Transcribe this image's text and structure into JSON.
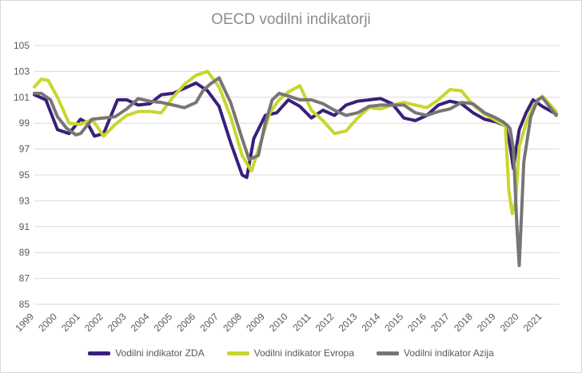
{
  "chart_data": {
    "type": "line",
    "title": "OECD vodilni indikatorji",
    "xlabel": "",
    "ylabel": "",
    "ylim": [
      85,
      105
    ],
    "yticks": [
      "85",
      "87",
      "89",
      "91",
      "93",
      "95",
      "97",
      "99",
      "101",
      "103",
      "105"
    ],
    "xticks": [
      "1999",
      "2000",
      "2001",
      "2002",
      "2003",
      "2004",
      "2005",
      "2006",
      "2007",
      "2008",
      "2009",
      "2010",
      "2011",
      "2012",
      "2013",
      "2014",
      "2015",
      "2016",
      "2017",
      "2018",
      "2019",
      "2020",
      "2021"
    ],
    "grid": true,
    "legend_position": "bottom",
    "series": [
      {
        "name": "Vodilni indikator ZDA",
        "color": "#3a1f7a",
        "x": [
          1999.0,
          1999.5,
          2000.0,
          2000.5,
          2001.0,
          2001.3,
          2001.6,
          2002.0,
          2002.3,
          2002.6,
          2003.0,
          2003.5,
          2004.0,
          2004.5,
          2005.0,
          2005.5,
          2006.0,
          2006.5,
          2007.0,
          2007.5,
          2008.0,
          2008.2,
          2008.5,
          2009.0,
          2009.5,
          2010.0,
          2010.5,
          2011.0,
          2011.5,
          2012.0,
          2012.5,
          2013.0,
          2013.5,
          2014.0,
          2014.5,
          2015.0,
          2015.5,
          2016.0,
          2016.5,
          2017.0,
          2017.5,
          2018.0,
          2018.5,
          2019.0,
          2019.4,
          2019.6,
          2019.75,
          2019.85,
          2020.0,
          2020.3,
          2020.6,
          2021.0,
          2021.6
        ],
        "values": [
          101.2,
          100.8,
          98.5,
          98.2,
          99.3,
          99.0,
          98.0,
          98.2,
          99.5,
          100.8,
          100.8,
          100.4,
          100.5,
          101.2,
          101.3,
          101.7,
          102.1,
          101.5,
          100.3,
          97.5,
          95.0,
          94.8,
          97.8,
          99.6,
          99.8,
          100.8,
          100.3,
          99.4,
          100.0,
          99.6,
          100.4,
          100.7,
          100.8,
          100.9,
          100.5,
          99.4,
          99.2,
          99.6,
          100.4,
          100.7,
          100.5,
          99.8,
          99.3,
          99.1,
          98.8,
          97.3,
          95.5,
          96.8,
          98.5,
          99.8,
          100.8,
          100.3,
          99.7
        ]
      },
      {
        "name": "Vodilni indikator Evropa",
        "color": "#c8d62e",
        "x": [
          1999.0,
          1999.3,
          1999.6,
          2000.0,
          2000.5,
          2001.0,
          2001.5,
          2002.0,
          2002.5,
          2003.0,
          2003.5,
          2004.0,
          2004.5,
          2005.0,
          2005.5,
          2006.0,
          2006.5,
          2007.0,
          2007.5,
          2008.0,
          2008.4,
          2008.8,
          2009.2,
          2009.6,
          2010.0,
          2010.5,
          2011.0,
          2011.5,
          2012.0,
          2012.5,
          2013.0,
          2013.5,
          2014.0,
          2014.5,
          2015.0,
          2015.5,
          2016.0,
          2016.5,
          2017.0,
          2017.5,
          2018.0,
          2018.5,
          2019.0,
          2019.4,
          2019.55,
          2019.7,
          2019.85,
          2020.0,
          2020.3,
          2020.6,
          2021.0,
          2021.6
        ],
        "values": [
          101.8,
          102.4,
          102.3,
          101.0,
          99.0,
          98.9,
          99.3,
          98.0,
          98.9,
          99.6,
          99.9,
          99.9,
          99.8,
          101.0,
          102.0,
          102.7,
          103.0,
          101.8,
          99.5,
          96.5,
          95.3,
          97.5,
          99.8,
          100.8,
          101.4,
          101.9,
          100.0,
          99.2,
          98.2,
          98.4,
          99.4,
          100.2,
          100.1,
          100.4,
          100.6,
          100.4,
          100.2,
          100.8,
          101.6,
          101.5,
          100.4,
          99.7,
          99.2,
          98.8,
          93.8,
          92.0,
          93.0,
          97.2,
          99.0,
          100.3,
          101.1,
          99.9
        ]
      },
      {
        "name": "Vodilni indikator Azija",
        "color": "#767676",
        "x": [
          1999.0,
          1999.3,
          1999.7,
          2000.0,
          2000.4,
          2000.8,
          2001.0,
          2001.5,
          2002.0,
          2002.5,
          2003.0,
          2003.5,
          2004.0,
          2004.5,
          2005.0,
          2005.5,
          2006.0,
          2006.3,
          2006.6,
          2007.0,
          2007.5,
          2008.0,
          2008.3,
          2008.7,
          2009.0,
          2009.3,
          2009.6,
          2010.0,
          2010.5,
          2011.0,
          2011.5,
          2012.0,
          2012.5,
          2013.0,
          2013.5,
          2014.0,
          2014.5,
          2015.0,
          2015.5,
          2016.0,
          2016.5,
          2017.0,
          2017.5,
          2018.0,
          2018.5,
          2019.0,
          2019.3,
          2019.5,
          2019.6,
          2019.75,
          2019.9,
          2020.0,
          2020.2,
          2020.5,
          2020.8,
          2021.0,
          2021.6
        ],
        "values": [
          101.3,
          101.3,
          100.8,
          99.5,
          98.6,
          98.1,
          98.2,
          99.3,
          99.4,
          99.5,
          100.1,
          100.9,
          100.7,
          100.6,
          100.4,
          100.2,
          100.6,
          101.5,
          102.0,
          102.5,
          100.6,
          97.8,
          96.2,
          96.5,
          99.0,
          100.8,
          101.3,
          101.1,
          100.8,
          100.8,
          100.5,
          100.0,
          99.6,
          99.8,
          100.3,
          100.4,
          100.4,
          100.4,
          99.8,
          99.6,
          99.9,
          100.1,
          100.6,
          100.5,
          99.8,
          99.4,
          99.1,
          98.8,
          98.6,
          97.0,
          91.0,
          88.0,
          96.0,
          99.5,
          100.8,
          101.0,
          99.6
        ]
      }
    ]
  }
}
